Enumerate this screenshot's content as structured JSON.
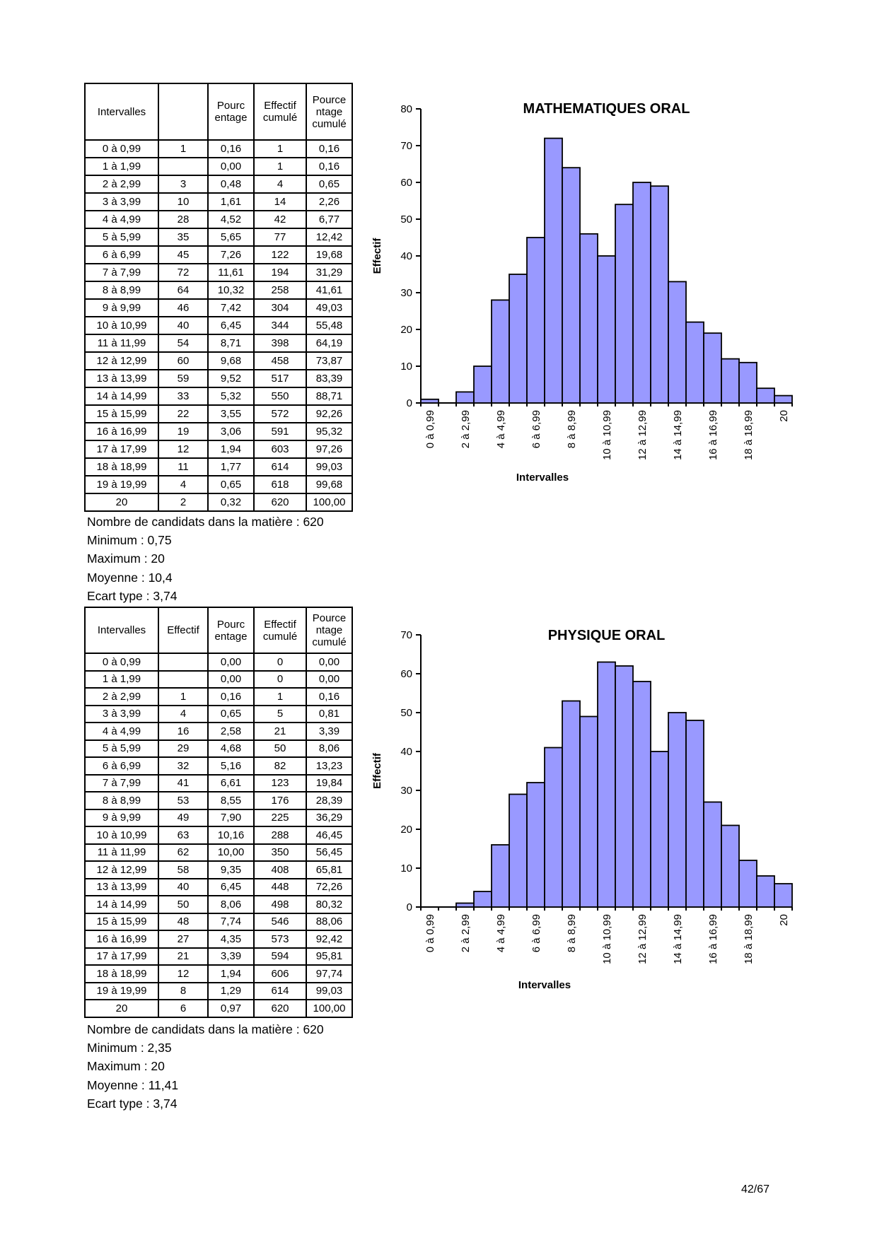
{
  "page_number": "42/67",
  "bar_color": "#9999FF",
  "sections": [
    {
      "table": {
        "headers": [
          "Intervalles",
          "",
          "Pourc\nentage",
          "Effectif\ncumulé",
          "Pource\nntage\ncumulé"
        ],
        "rows": [
          [
            "0 à 0,99",
            "1",
            "0,16",
            "1",
            "0,16"
          ],
          [
            "1 à 1,99",
            "",
            "0,00",
            "1",
            "0,16"
          ],
          [
            "2 à 2,99",
            "3",
            "0,48",
            "4",
            "0,65"
          ],
          [
            "3 à 3,99",
            "10",
            "1,61",
            "14",
            "2,26"
          ],
          [
            "4 à 4,99",
            "28",
            "4,52",
            "42",
            "6,77"
          ],
          [
            "5 à 5,99",
            "35",
            "5,65",
            "77",
            "12,42"
          ],
          [
            "6 à 6,99",
            "45",
            "7,26",
            "122",
            "19,68"
          ],
          [
            "7 à 7,99",
            "72",
            "11,61",
            "194",
            "31,29"
          ],
          [
            "8 à 8,99",
            "64",
            "10,32",
            "258",
            "41,61"
          ],
          [
            "9 à 9,99",
            "46",
            "7,42",
            "304",
            "49,03"
          ],
          [
            "10 à 10,99",
            "40",
            "6,45",
            "344",
            "55,48"
          ],
          [
            "11 à 11,99",
            "54",
            "8,71",
            "398",
            "64,19"
          ],
          [
            "12 à 12,99",
            "60",
            "9,68",
            "458",
            "73,87"
          ],
          [
            "13 à 13,99",
            "59",
            "9,52",
            "517",
            "83,39"
          ],
          [
            "14 à 14,99",
            "33",
            "5,32",
            "550",
            "88,71"
          ],
          [
            "15 à 15,99",
            "22",
            "3,55",
            "572",
            "92,26"
          ],
          [
            "16 à 16,99",
            "19",
            "3,06",
            "591",
            "95,32"
          ],
          [
            "17 à 17,99",
            "12",
            "1,94",
            "603",
            "97,26"
          ],
          [
            "18 à 18,99",
            "11",
            "1,77",
            "614",
            "99,03"
          ],
          [
            "19 à 19,99",
            "4",
            "0,65",
            "618",
            "99,68"
          ],
          [
            "20",
            "2",
            "0,32",
            "620",
            "100,00"
          ]
        ]
      },
      "stats": [
        "Nombre de candidats dans la matière : 620",
        "Minimum : 0,75",
        "Maximum : 20",
        "Moyenne : 10,4",
        "Ecart type : 3,74"
      ]
    },
    {
      "table": {
        "headers": [
          "Intervalles",
          "Effectif",
          "Pourc\nentage",
          "Effectif\ncumulé",
          "Pource\nntage\ncumulé"
        ],
        "rows": [
          [
            "0 à 0,99",
            "",
            "0,00",
            "0",
            "0,00"
          ],
          [
            "1 à 1,99",
            "",
            "0,00",
            "0",
            "0,00"
          ],
          [
            "2 à 2,99",
            "1",
            "0,16",
            "1",
            "0,16"
          ],
          [
            "3 à 3,99",
            "4",
            "0,65",
            "5",
            "0,81"
          ],
          [
            "4 à 4,99",
            "16",
            "2,58",
            "21",
            "3,39"
          ],
          [
            "5 à 5,99",
            "29",
            "4,68",
            "50",
            "8,06"
          ],
          [
            "6 à 6,99",
            "32",
            "5,16",
            "82",
            "13,23"
          ],
          [
            "7 à 7,99",
            "41",
            "6,61",
            "123",
            "19,84"
          ],
          [
            "8 à 8,99",
            "53",
            "8,55",
            "176",
            "28,39"
          ],
          [
            "9 à 9,99",
            "49",
            "7,90",
            "225",
            "36,29"
          ],
          [
            "10 à 10,99",
            "63",
            "10,16",
            "288",
            "46,45"
          ],
          [
            "11 à 11,99",
            "62",
            "10,00",
            "350",
            "56,45"
          ],
          [
            "12 à 12,99",
            "58",
            "9,35",
            "408",
            "65,81"
          ],
          [
            "13 à 13,99",
            "40",
            "6,45",
            "448",
            "72,26"
          ],
          [
            "14 à 14,99",
            "50",
            "8,06",
            "498",
            "80,32"
          ],
          [
            "15 à 15,99",
            "48",
            "7,74",
            "546",
            "88,06"
          ],
          [
            "16 à 16,99",
            "27",
            "4,35",
            "573",
            "92,42"
          ],
          [
            "17 à 17,99",
            "21",
            "3,39",
            "594",
            "95,81"
          ],
          [
            "18 à 18,99",
            "12",
            "1,94",
            "606",
            "97,74"
          ],
          [
            "19 à 19,99",
            "8",
            "1,29",
            "614",
            "99,03"
          ],
          [
            "20",
            "6",
            "0,97",
            "620",
            "100,00"
          ]
        ]
      },
      "stats": [
        "Nombre de candidats dans la matière : 620",
        "Minimum : 2,35",
        "Maximum : 20",
        "Moyenne : 11,41",
        "Ecart type : 3,74"
      ]
    }
  ],
  "chart_data": [
    {
      "type": "bar",
      "title": "MATHEMATIQUES ORAL",
      "xlabel": "Intervalles",
      "ylabel": "Effectif",
      "ylim": [
        0,
        80
      ],
      "ytick_step": 10,
      "grid": false,
      "legend": "none",
      "categories": [
        "0 à 0,99",
        "1 à 1,99",
        "2 à 2,99",
        "3 à 3,99",
        "4 à 4,99",
        "5 à 5,99",
        "6 à 6,99",
        "7 à 7,99",
        "8 à 8,99",
        "9 à 9,99",
        "10 à 10,99",
        "11 à 11,99",
        "12 à 12,99",
        "13 à 13,99",
        "14 à 14,99",
        "15 à 15,99",
        "16 à 16,99",
        "17 à 17,99",
        "18 à 18,99",
        "19 à 19,99",
        "20"
      ],
      "values": [
        1,
        0,
        3,
        10,
        28,
        35,
        45,
        72,
        64,
        46,
        40,
        54,
        60,
        59,
        33,
        22,
        19,
        12,
        11,
        4,
        2
      ],
      "xtick_label_interval": 2
    },
    {
      "type": "bar",
      "title": "PHYSIQUE ORAL",
      "xlabel": "Intervalles",
      "ylabel": "Effectif",
      "ylim": [
        0,
        70
      ],
      "ytick_step": 10,
      "grid": false,
      "legend": "none",
      "categories": [
        "0 à 0,99",
        "1 à 1,99",
        "2 à 2,99",
        "3 à 3,99",
        "4 à 4,99",
        "5 à 5,99",
        "6 à 6,99",
        "7 à 7,99",
        "8 à 8,99",
        "9 à 9,99",
        "10 à 10,99",
        "11 à 11,99",
        "12 à 12,99",
        "13 à 13,99",
        "14 à 14,99",
        "15 à 15,99",
        "16 à 16,99",
        "17 à 17,99",
        "18 à 18,99",
        "19 à 19,99",
        "20"
      ],
      "values": [
        0,
        0,
        1,
        4,
        16,
        29,
        32,
        41,
        53,
        49,
        63,
        62,
        58,
        40,
        50,
        48,
        27,
        21,
        12,
        8,
        6
      ],
      "xtick_label_interval": 2
    }
  ]
}
